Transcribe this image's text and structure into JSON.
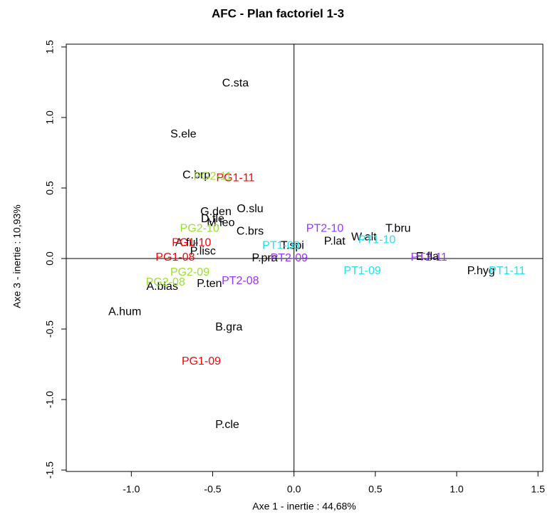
{
  "chart_data": {
    "type": "scatter",
    "title": "AFC - Plan factoriel 1-3",
    "x_label": "Axe 1 - inertie : 44,68%",
    "y_label": "Axe 3 - inertie : 10,93%",
    "xlim": [
      -1.4,
      1.53
    ],
    "ylim": [
      -1.51,
      1.52
    ],
    "xticks": [
      {
        "value": -1.0,
        "label": "-1.0"
      },
      -0.5,
      {
        "value": 0,
        "label": "0.0"
      },
      0.5,
      {
        "value": 1.0,
        "label": "1.0"
      },
      1.5
    ],
    "yticks": [
      -1.5,
      {
        "value": -1.0,
        "label": "-1.0"
      },
      -0.5,
      {
        "value": 0,
        "label": "0.0"
      },
      0.5,
      {
        "value": 1.0,
        "label": "1.0"
      },
      1.5
    ],
    "reference_lines": {
      "x": 0,
      "y": 0
    },
    "series": [
      {
        "color": "#000000",
        "labels": [
          "C.sta",
          "S.ele",
          "C.brp",
          "G.den",
          "O.slu",
          "D.fle",
          "M.leo",
          "C.brs",
          "A.ful",
          "P.lisc",
          "T.spi",
          "P.pra",
          "P.ten",
          "A.bias",
          "A.hum",
          "B.gra",
          "P.cle",
          "P.lat",
          "W.alt",
          "T.bru",
          "E.fla",
          "P.hyg"
        ],
        "x": [
          -0.36,
          -0.68,
          -0.6,
          -0.48,
          -0.27,
          -0.5,
          -0.45,
          -0.27,
          -0.66,
          -0.56,
          -0.01,
          -0.18,
          -0.52,
          -0.81,
          -1.04,
          -0.4,
          -0.41,
          0.25,
          0.43,
          0.64,
          0.82,
          1.15
        ],
        "values": [
          1.24,
          0.88,
          0.59,
          0.33,
          0.35,
          0.28,
          0.25,
          0.19,
          0.11,
          0.05,
          0.09,
          0.0,
          -0.18,
          -0.2,
          -0.38,
          -0.49,
          -1.18,
          0.12,
          0.15,
          0.21,
          0.01,
          -0.09
        ]
      },
      {
        "color": "#ff0000",
        "labels": [
          "PG1-11",
          "PG1-10",
          "PG1-08",
          "PG1-09"
        ],
        "x": [
          -0.36,
          -0.63,
          -0.73,
          -0.57
        ],
        "values": [
          0.57,
          0.11,
          0.005,
          -0.73
        ]
      },
      {
        "color": "#99e033",
        "labels": [
          "PG2-11",
          "PG2-10",
          "PG2-09",
          "PG2-08"
        ],
        "x": [
          -0.5,
          -0.58,
          -0.64,
          -0.79
        ],
        "values": [
          0.58,
          0.21,
          -0.1,
          -0.17
        ]
      },
      {
        "color": "#9933ff",
        "labels": [
          "PT2-10",
          "PT2-09",
          "PT2-08",
          "PT2-11"
        ],
        "x": [
          0.19,
          -0.03,
          -0.33,
          0.83
        ],
        "values": [
          0.21,
          0.0,
          -0.16,
          0.005
        ]
      },
      {
        "color": "#22e0f0",
        "labels": [
          "PT1-10",
          "PT1-08",
          "PT1-09",
          "PT1-11"
        ],
        "x": [
          0.51,
          -0.08,
          0.42,
          1.31
        ],
        "values": [
          0.13,
          0.09,
          -0.09,
          -0.09
        ]
      }
    ]
  }
}
